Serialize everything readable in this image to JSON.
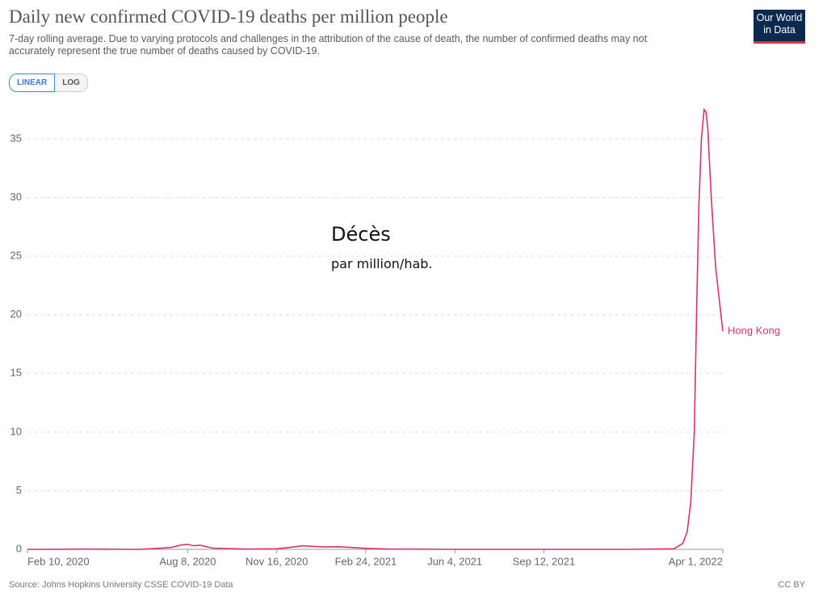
{
  "chart_data": {
    "type": "line",
    "title": "Daily new confirmed COVID-19 deaths per million people",
    "subtitle": [
      "7-day rolling average. Due to varying protocols and challenges in the attribution of the cause of death, the number of confirmed deaths may not",
      "accurately represent the true number of deaths caused by COVID-19."
    ],
    "scale_buttons": [
      "LINEAR",
      "LOG"
    ],
    "logo": [
      "Our World",
      "in Data"
    ],
    "annotations": [
      "Décès",
      "par million/hab."
    ],
    "source": "Source: Johns Hopkins University CSSE COVID-19 Data",
    "license": "CC BY",
    "x": [
      "2020-02-10",
      "2020-03-15",
      "2020-04-15",
      "2020-06-15",
      "2020-07-20",
      "2020-08-01",
      "2020-08-08",
      "2020-08-15",
      "2020-08-22",
      "2020-09-05",
      "2020-10-15",
      "2020-11-16",
      "2020-12-05",
      "2020-12-15",
      "2020-12-28",
      "2021-01-10",
      "2021-01-25",
      "2021-02-10",
      "2021-02-24",
      "2021-03-20",
      "2021-06-04",
      "2021-09-12",
      "2021-12-15",
      "2022-02-05",
      "2022-02-15",
      "2022-02-20",
      "2022-02-24",
      "2022-02-28",
      "2022-03-02",
      "2022-03-05",
      "2022-03-08",
      "2022-03-11",
      "2022-03-13",
      "2022-03-15",
      "2022-03-19",
      "2022-03-24",
      "2022-04-01"
    ],
    "series": [
      {
        "name": "Hong Kong",
        "color": "#d6336c",
        "values": [
          0,
          0.01,
          0.02,
          0,
          0.15,
          0.38,
          0.42,
          0.3,
          0.35,
          0.1,
          0.02,
          0.05,
          0.2,
          0.3,
          0.25,
          0.2,
          0.22,
          0.15,
          0.08,
          0.03,
          0,
          0,
          0,
          0.05,
          0.5,
          1.5,
          4,
          10,
          18,
          29,
          35,
          37.5,
          37.3,
          36,
          30,
          24,
          18.6
        ]
      }
    ],
    "xlim": [
      "2020-02-10",
      "2022-04-01"
    ],
    "xticks": [
      {
        "value": "2020-02-10",
        "label": "Feb 10, 2020"
      },
      {
        "value": "2020-08-08",
        "label": "Aug 8, 2020"
      },
      {
        "value": "2020-11-16",
        "label": "Nov 16, 2020"
      },
      {
        "value": "2021-02-24",
        "label": "Feb 24, 2021"
      },
      {
        "value": "2021-06-04",
        "label": "Jun 4, 2021"
      },
      {
        "value": "2021-09-12",
        "label": "Sep 12, 2021"
      },
      {
        "value": "2022-04-01",
        "label": "Apr 1, 2022"
      }
    ],
    "ylim": [
      0,
      38
    ],
    "yticks": [
      0,
      5,
      10,
      15,
      20,
      25,
      30,
      35
    ],
    "grid": true
  }
}
